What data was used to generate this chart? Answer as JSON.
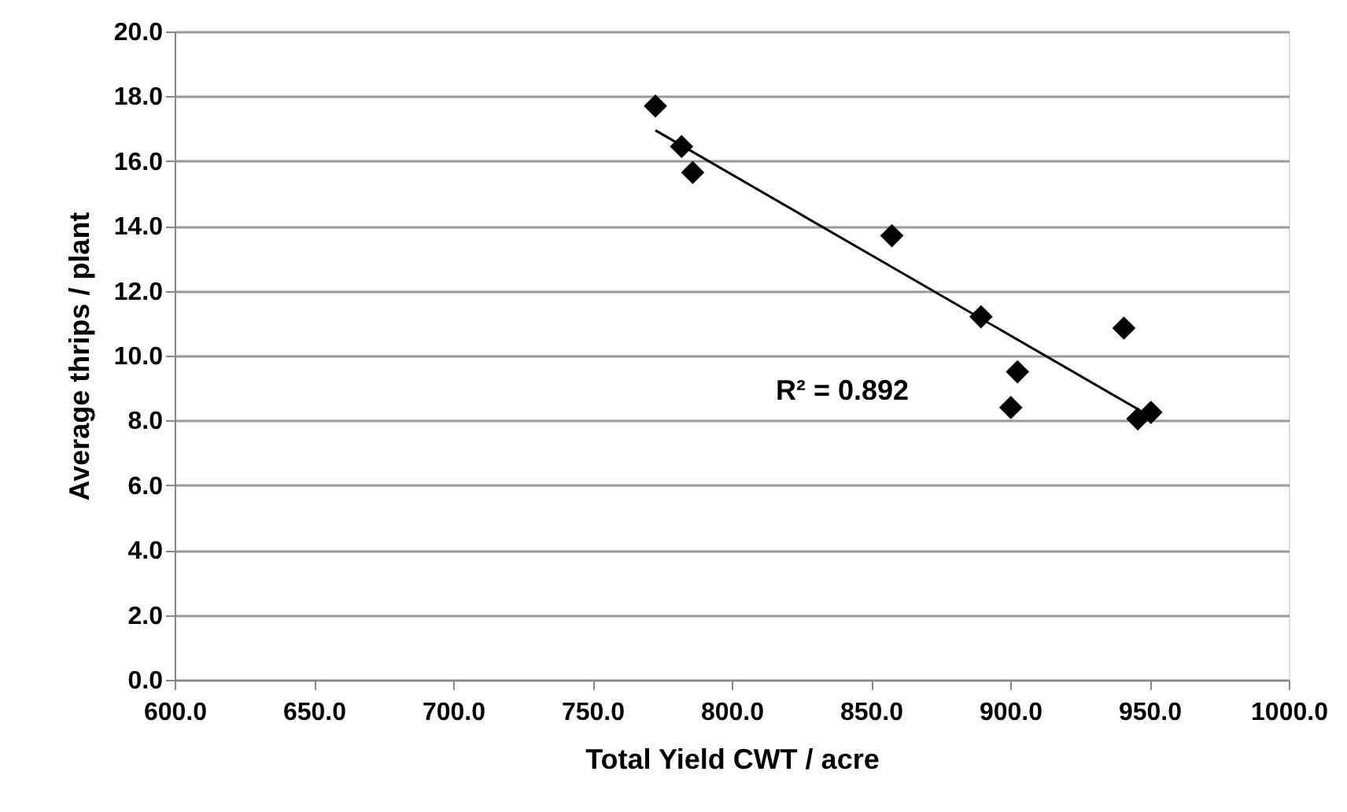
{
  "chart_data": {
    "type": "scatter",
    "xlabel": "Total Yield CWT / acre",
    "ylabel": "Average thrips / plant",
    "series": [
      {
        "type": "scatter",
        "color": "#000000",
        "marker": "diamond",
        "x": [
          772.6,
          782,
          786,
          857.5,
          889.5,
          940.8,
          902.6,
          900.2,
          945.8,
          950.5
        ],
        "values": [
          17.7,
          16.45,
          15.65,
          13.7,
          11.2,
          10.85,
          9.5,
          8.4,
          8.05,
          8.25
        ]
      },
      {
        "type": "line",
        "color": "#000000",
        "marker": "none",
        "x": [
          772.6,
          946.8
        ],
        "values": [
          16.95,
          8.3
        ]
      }
    ],
    "annotations": [
      "R² = 0.892"
    ],
    "xlim": [
      600,
      1000
    ],
    "xticks": [
      {
        "value": 600,
        "label": "600.0"
      },
      {
        "value": 650,
        "label": "650.0"
      },
      {
        "value": 700,
        "label": "700.0"
      },
      {
        "value": 750,
        "label": "750.0"
      },
      {
        "value": 800,
        "label": "800.0"
      },
      {
        "value": 850,
        "label": "850.0"
      },
      {
        "value": 900,
        "label": "900.0"
      },
      {
        "value": 950,
        "label": "950.0"
      },
      {
        "value": 1000,
        "label": "1000.0"
      }
    ],
    "ylim": [
      0,
      20
    ],
    "yticks": [
      {
        "value": 0,
        "label": "0.0"
      },
      {
        "value": 2,
        "label": "2.0"
      },
      {
        "value": 4,
        "label": "4.0"
      },
      {
        "value": 6,
        "label": "6.0"
      },
      {
        "value": 8,
        "label": "8.0"
      },
      {
        "value": 10,
        "label": "10.0"
      },
      {
        "value": 12,
        "label": "12.0"
      },
      {
        "value": 14,
        "label": "14.0"
      },
      {
        "value": 16,
        "label": "16.0"
      },
      {
        "value": 18,
        "label": "18.0"
      },
      {
        "value": 20,
        "label": "20.0"
      }
    ],
    "grid": "y"
  }
}
